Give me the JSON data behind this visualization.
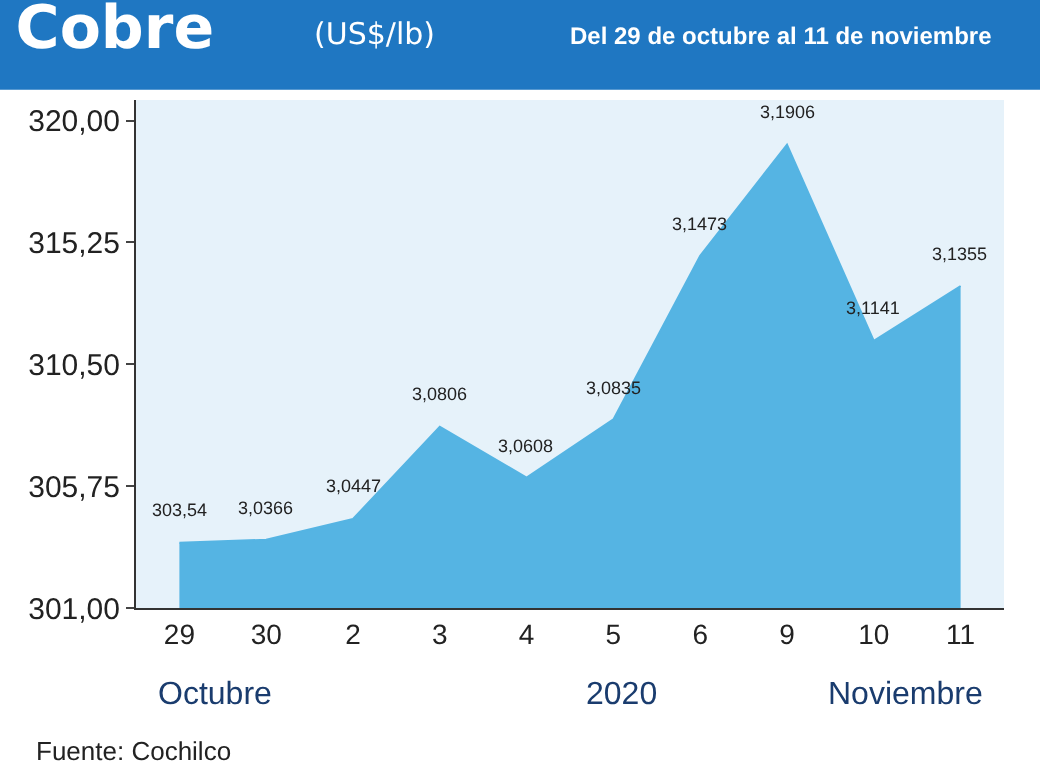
{
  "chart_data": {
    "type": "area",
    "title": "Cobre",
    "subtitle": "(US$/lb)",
    "annotations": [
      "Del 29 de octubre al 11 de noviembre",
      "Octubre",
      "2020",
      "Noviembre",
      "Fuente: Cochilco"
    ],
    "categories": [
      "29",
      "30",
      "2",
      "3",
      "4",
      "5",
      "6",
      "9",
      "10",
      "11"
    ],
    "values": [
      303.54,
      303.66,
      304.47,
      308.06,
      306.08,
      308.35,
      314.73,
      319.06,
      311.41,
      313.55
    ],
    "value_labels": [
      "303,54",
      "3,0366",
      "3,0447",
      "3,0806",
      "3,0608",
      "3,0835",
      "3,1473",
      "3,1906",
      "3,1141",
      "3,1355"
    ],
    "color": "#55b4e3",
    "ylim": [
      301,
      320.8
    ],
    "yticks": [
      {
        "value": 301,
        "label": "301,00"
      },
      {
        "value": 305.75,
        "label": "305,75"
      },
      {
        "value": 310.5,
        "label": "310,50"
      },
      {
        "value": 315.25,
        "label": "315,25"
      },
      {
        "value": 320,
        "label": "320,00"
      }
    ],
    "grid": false,
    "legend": false
  }
}
